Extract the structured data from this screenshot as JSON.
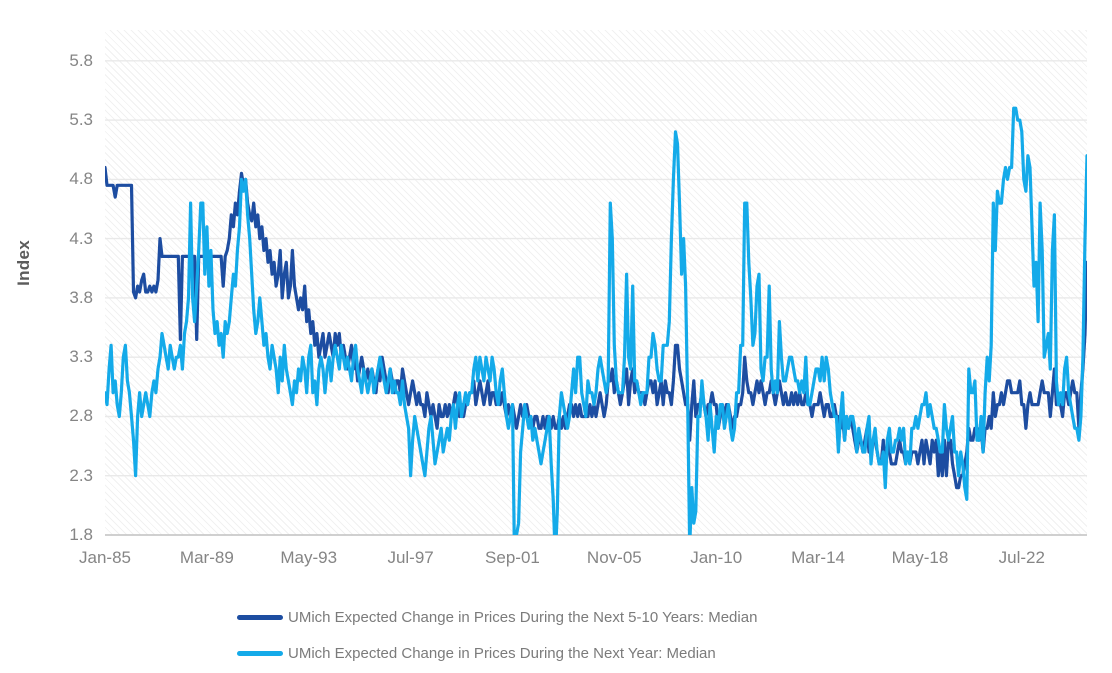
{
  "chart_data": {
    "type": "line",
    "title": "",
    "ylabel": "Index",
    "grid": "horizontal",
    "legend_position": "bottom",
    "x_start": "Jan-1985",
    "x_end": "Mar-2025",
    "frequency": "monthly",
    "ylim": [
      1.8,
      6.06
    ],
    "yticks": [
      1.8,
      2.3,
      2.8,
      3.3,
      3.8,
      4.3,
      4.8,
      5.3,
      5.8
    ],
    "x_ticks": [
      {
        "label": "Jan-85",
        "month": 0
      },
      {
        "label": "Mar-89",
        "month": 50
      },
      {
        "label": "May-93",
        "month": 100
      },
      {
        "label": "Jul-97",
        "month": 150
      },
      {
        "label": "Sep-01",
        "month": 200
      },
      {
        "label": "Nov-05",
        "month": 250
      },
      {
        "label": "Jan-10",
        "month": 300
      },
      {
        "label": "Mar-14",
        "month": 350
      },
      {
        "label": "May-18",
        "month": 400
      },
      {
        "label": "Jul-22",
        "month": 450
      }
    ],
    "series": [
      {
        "name": "UMich Expected Change in Prices During the Next 5-10 Years: Median",
        "color": "#1d4da1",
        "values": [
          4.9,
          4.75,
          4.75,
          4.75,
          4.75,
          4.65,
          4.75,
          4.75,
          4.75,
          4.75,
          4.75,
          4.75,
          4.75,
          4.75,
          3.85,
          3.8,
          3.9,
          3.85,
          3.95,
          4.0,
          3.85,
          3.85,
          3.9,
          3.85,
          3.9,
          3.85,
          3.95,
          4.3,
          4.15,
          4.15,
          4.15,
          4.15,
          4.15,
          4.15,
          4.15,
          4.15,
          4.15,
          3.45,
          4.15,
          4.15,
          4.15,
          4.15,
          4.15,
          4.15,
          4.15,
          3.45,
          4.15,
          4.15,
          4.15,
          4.15,
          4.15,
          4.15,
          4.15,
          4.15,
          4.15,
          4.15,
          4.15,
          4.15,
          3.9,
          4.15,
          4.2,
          4.3,
          4.5,
          4.4,
          4.6,
          4.5,
          4.7,
          4.85,
          4.75,
          4.8,
          4.6,
          4.5,
          4.45,
          4.6,
          4.4,
          4.5,
          4.3,
          4.4,
          4.2,
          4.3,
          4.1,
          4.2,
          4.0,
          4.1,
          3.9,
          4.0,
          4.2,
          3.8,
          4.0,
          4.1,
          3.8,
          3.9,
          4.2,
          3.9,
          3.8,
          3.7,
          3.8,
          3.7,
          3.9,
          3.6,
          3.7,
          3.5,
          3.6,
          3.4,
          3.5,
          3.3,
          3.4,
          3.5,
          3.3,
          3.4,
          3.5,
          3.4,
          3.3,
          3.5,
          3.4,
          3.5,
          3.3,
          3.4,
          3.3,
          3.2,
          3.3,
          3.4,
          3.2,
          3.3,
          3.1,
          3.2,
          3.3,
          3.2,
          3.1,
          3.2,
          3.1,
          3.2,
          3.1,
          3.0,
          3.2,
          3.1,
          3.3,
          3.2,
          3.1,
          3.0,
          3.2,
          3.1,
          3.0,
          3.1,
          3.1,
          3.0,
          3.2,
          3.1,
          3.0,
          2.9,
          3.0,
          3.1,
          3.0,
          2.9,
          3.0,
          2.9,
          2.9,
          2.8,
          3.0,
          2.9,
          2.8,
          2.9,
          2.8,
          2.7,
          2.9,
          2.8,
          2.8,
          2.9,
          2.8,
          2.9,
          2.8,
          2.9,
          3.0,
          2.9,
          2.8,
          2.9,
          2.8,
          2.9,
          2.9,
          3.0,
          3.0,
          3.1,
          2.9,
          3.0,
          3.1,
          3.0,
          2.9,
          3.0,
          3.1,
          2.9,
          3.0,
          3.0,
          2.9,
          3.0,
          2.9,
          3.0,
          2.9,
          2.8,
          2.9,
          2.8,
          2.9,
          2.8,
          2.7,
          2.8,
          2.9,
          2.8,
          2.8,
          2.9,
          2.8,
          2.8,
          2.7,
          2.8,
          2.8,
          2.7,
          2.7,
          2.8,
          2.7,
          2.8,
          2.8,
          2.7,
          2.8,
          2.7,
          2.7,
          2.8,
          2.7,
          2.8,
          2.7,
          2.8,
          2.9,
          2.9,
          2.8,
          2.9,
          2.8,
          2.9,
          2.8,
          2.8,
          2.8,
          2.8,
          2.9,
          2.8,
          2.9,
          2.8,
          2.9,
          3.0,
          2.9,
          2.8,
          2.9,
          3.1,
          3.1,
          3.2,
          3.0,
          3.1,
          3.0,
          2.9,
          3.0,
          3.1,
          3.2,
          2.9,
          3.1,
          3.2,
          3.0,
          3.1,
          3.0,
          3.0,
          3.0,
          2.9,
          3.0,
          3.1,
          3.1,
          3.0,
          3.1,
          2.9,
          3.0,
          3.1,
          2.9,
          3.1,
          3.0,
          3.0,
          2.9,
          3.1,
          3.4,
          3.4,
          3.2,
          3.1,
          3.0,
          2.9,
          2.9,
          2.6,
          2.9,
          3.1,
          2.8,
          2.9,
          2.9,
          3.0,
          2.9,
          2.8,
          2.9,
          2.9,
          3.0,
          2.9,
          2.9,
          2.7,
          2.8,
          2.9,
          2.8,
          2.9,
          2.9,
          2.8,
          2.7,
          2.8,
          2.8,
          2.9,
          2.9,
          3.0,
          3.3,
          3.1,
          3.0,
          3.0,
          2.9,
          3.0,
          3.1,
          3.0,
          3.1,
          3.0,
          2.9,
          3.0,
          3.0,
          3.1,
          3.0,
          2.9,
          3.0,
          3.1,
          3.0,
          2.9,
          3.0,
          2.9,
          2.9,
          3.0,
          2.9,
          3.0,
          2.9,
          3.0,
          2.9,
          2.9,
          3.0,
          2.9,
          2.9,
          2.8,
          2.9,
          2.9,
          2.9,
          3.0,
          2.9,
          2.8,
          2.9,
          2.9,
          2.8,
          2.8,
          2.9,
          2.8,
          2.8,
          2.7,
          2.8,
          2.6,
          2.8,
          2.7,
          2.8,
          2.7,
          2.6,
          2.5,
          2.6,
          2.6,
          2.5,
          2.6,
          2.7,
          2.5,
          2.5,
          2.6,
          2.6,
          2.5,
          2.4,
          2.4,
          2.6,
          2.3,
          2.6,
          2.5,
          2.4,
          2.4,
          2.4,
          2.5,
          2.6,
          2.5,
          2.5,
          2.4,
          2.5,
          2.4,
          2.5,
          2.5,
          2.5,
          2.4,
          2.5,
          2.6,
          2.4,
          2.6,
          2.5,
          2.4,
          2.6,
          2.5,
          2.6,
          2.3,
          2.5,
          2.3,
          2.6,
          2.3,
          2.6,
          2.6,
          2.4,
          2.3,
          2.2,
          2.2,
          2.3,
          2.3,
          2.4,
          2.5,
          2.7,
          2.6,
          2.6,
          2.7,
          2.7,
          2.6,
          2.7,
          2.5,
          2.7,
          2.7,
          2.8,
          2.7,
          3.0,
          2.8,
          2.9,
          2.9,
          3.0,
          2.9,
          3.0,
          3.1,
          3.1,
          3.0,
          3.0,
          3.0,
          3.0,
          3.1,
          2.9,
          2.9,
          2.7,
          2.9,
          3.0,
          2.9,
          2.9,
          2.9,
          2.9,
          3.0,
          3.1,
          3.0,
          3.0,
          3.0,
          2.8,
          3.0,
          3.2,
          2.9,
          2.9,
          2.9,
          2.8,
          3.0,
          3.0,
          2.9,
          3.0,
          3.1,
          3.0,
          3.0,
          2.7,
          3.0,
          3.2,
          3.5,
          4.1
        ]
      },
      {
        "name": "UMich Expected Change in Prices During the Next Year: Median",
        "color": "#14aae9",
        "values": [
          3.0,
          2.9,
          3.2,
          3.4,
          3.0,
          3.1,
          2.9,
          2.8,
          3.0,
          3.3,
          3.4,
          3.1,
          3.0,
          2.8,
          2.6,
          2.3,
          2.8,
          3.0,
          2.8,
          2.9,
          3.0,
          2.9,
          2.8,
          3.0,
          3.1,
          3.0,
          3.2,
          3.3,
          3.5,
          3.4,
          3.3,
          3.2,
          3.4,
          3.3,
          3.2,
          3.3,
          3.3,
          3.4,
          3.2,
          3.5,
          3.6,
          3.8,
          4.6,
          3.8,
          3.6,
          3.9,
          4.2,
          4.6,
          4.6,
          4.0,
          4.4,
          3.9,
          4.2,
          3.7,
          3.5,
          3.6,
          3.4,
          3.5,
          3.3,
          3.6,
          3.5,
          3.6,
          3.8,
          4.0,
          3.9,
          4.2,
          4.4,
          4.8,
          4.7,
          4.8,
          4.5,
          4.3,
          4.0,
          3.7,
          3.5,
          3.6,
          3.8,
          3.6,
          3.4,
          3.5,
          3.3,
          3.2,
          3.4,
          3.3,
          3.2,
          3.0,
          3.3,
          3.1,
          3.4,
          3.2,
          3.1,
          3.0,
          2.9,
          3.1,
          3.0,
          3.2,
          3.1,
          3.3,
          3.2,
          3.0,
          3.3,
          3.4,
          3.0,
          3.1,
          2.9,
          3.2,
          3.3,
          3.2,
          3.0,
          3.2,
          3.3,
          3.1,
          3.3,
          3.4,
          3.3,
          3.2,
          3.4,
          3.3,
          3.2,
          3.3,
          3.2,
          3.1,
          3.3,
          3.4,
          3.2,
          3.1,
          3.0,
          3.2,
          3.1,
          3.0,
          3.1,
          3.2,
          3.0,
          3.1,
          3.2,
          3.3,
          3.2,
          3.1,
          3.0,
          3.1,
          3.2,
          3.0,
          3.1,
          3.0,
          3.0,
          2.9,
          3.1,
          2.9,
          2.8,
          2.7,
          2.3,
          2.6,
          2.8,
          2.7,
          2.6,
          2.5,
          2.4,
          2.3,
          2.5,
          2.7,
          2.8,
          2.6,
          2.4,
          2.5,
          2.6,
          2.7,
          2.5,
          2.6,
          2.7,
          2.6,
          2.8,
          2.9,
          2.7,
          2.9,
          3.0,
          2.8,
          2.9,
          3.0,
          2.9,
          3.0,
          3.0,
          3.2,
          3.3,
          3.1,
          3.3,
          3.2,
          3.1,
          3.3,
          3.2,
          3.1,
          3.3,
          3.2,
          3.0,
          2.9,
          3.1,
          3.2,
          3.0,
          2.8,
          2.7,
          2.8,
          2.9,
          1.6,
          1.8,
          1.9,
          2.5,
          2.7,
          2.9,
          2.8,
          2.7,
          2.8,
          2.6,
          2.7,
          2.6,
          2.5,
          2.4,
          2.5,
          2.6,
          2.7,
          2.8,
          2.4,
          2.1,
          1.6,
          2.0,
          2.8,
          3.0,
          2.9,
          2.8,
          2.7,
          2.8,
          3.0,
          3.2,
          3.0,
          3.3,
          3.3,
          3.0,
          2.9,
          2.8,
          3.1,
          3.0,
          3.0,
          2.9,
          3.0,
          3.2,
          3.3,
          3.2,
          3.1,
          3.0,
          3.1,
          4.6,
          4.3,
          3.4,
          3.1,
          3.0,
          3.0,
          3.0,
          3.3,
          4.0,
          3.3,
          3.2,
          3.9,
          3.1,
          3.1,
          3.0,
          2.9,
          3.0,
          3.0,
          3.0,
          3.3,
          3.3,
          3.5,
          3.4,
          3.2,
          3.1,
          3.1,
          3.4,
          3.4,
          3.4,
          3.6,
          4.3,
          4.8,
          5.2,
          5.1,
          4.6,
          4.0,
          4.3,
          3.9,
          2.9,
          1.7,
          2.2,
          1.9,
          2.0,
          2.8,
          2.8,
          3.1,
          2.9,
          2.8,
          2.6,
          2.9,
          2.7,
          2.5,
          2.8,
          2.7,
          2.9,
          2.9,
          2.7,
          2.8,
          2.9,
          2.7,
          2.6,
          2.7,
          3.0,
          3.0,
          3.4,
          3.4,
          4.6,
          4.6,
          4.1,
          3.8,
          3.4,
          3.5,
          3.9,
          4.0,
          3.2,
          3.1,
          3.3,
          3.3,
          3.9,
          3.2,
          3.0,
          3.1,
          3.0,
          3.6,
          3.3,
          3.1,
          3.1,
          3.2,
          3.3,
          3.3,
          3.2,
          3.1,
          3.1,
          3.0,
          3.1,
          3.0,
          3.3,
          2.9,
          2.9,
          3.0,
          3.1,
          3.2,
          3.2,
          3.1,
          3.3,
          3.1,
          3.3,
          3.2,
          3.0,
          2.9,
          2.8,
          2.8,
          2.5,
          2.8,
          3.0,
          2.6,
          2.8,
          2.7,
          2.8,
          2.8,
          2.7,
          2.5,
          2.7,
          2.6,
          2.5,
          2.5,
          2.7,
          2.8,
          2.4,
          2.6,
          2.7,
          2.5,
          2.4,
          2.4,
          2.5,
          2.2,
          2.6,
          2.7,
          2.5,
          2.5,
          2.6,
          2.6,
          2.7,
          2.6,
          2.7,
          2.4,
          2.5,
          2.4,
          2.7,
          2.7,
          2.8,
          2.7,
          2.8,
          2.9,
          2.9,
          3.0,
          2.8,
          2.9,
          2.8,
          2.7,
          2.7,
          2.6,
          2.5,
          2.5,
          2.9,
          2.7,
          2.6,
          2.7,
          2.8,
          2.5,
          2.5,
          2.3,
          2.5,
          2.4,
          2.2,
          2.1,
          3.2,
          3.0,
          3.0,
          3.1,
          2.6,
          2.6,
          2.8,
          2.5,
          3.0,
          3.3,
          3.1,
          3.4,
          4.6,
          4.2,
          4.7,
          4.6,
          4.6,
          4.8,
          4.9,
          4.8,
          4.9,
          4.9,
          5.4,
          5.4,
          5.3,
          5.3,
          5.2,
          4.8,
          4.7,
          5.0,
          4.9,
          4.4,
          3.9,
          4.1,
          3.6,
          4.6,
          4.2,
          3.3,
          3.4,
          3.5,
          3.2,
          4.2,
          4.5,
          3.1,
          2.9,
          3.0,
          2.9,
          3.2,
          3.3,
          3.0,
          2.9,
          2.8,
          2.7,
          2.7,
          2.6,
          2.8,
          3.3,
          4.3,
          5.0
        ]
      }
    ]
  }
}
